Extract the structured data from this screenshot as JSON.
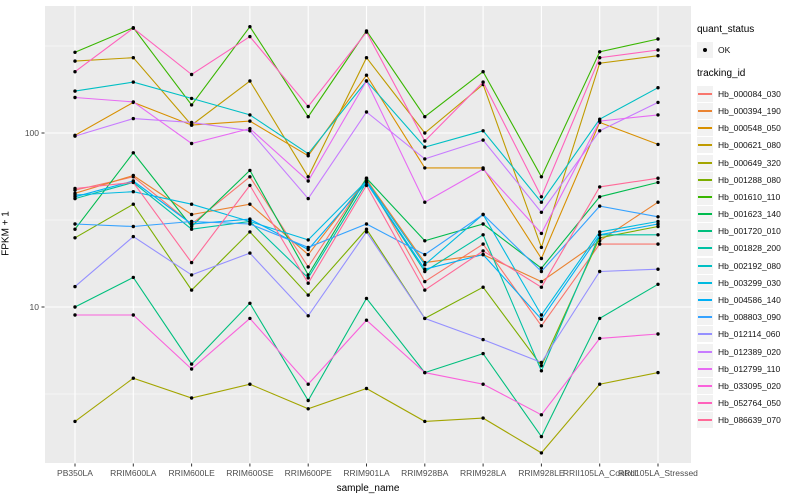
{
  "figure": {
    "y_axis_title": "FPKM + 1",
    "x_axis_title": "sample_name",
    "y_tick_labels": [
      "100",
      "10"
    ],
    "legend": {
      "quant_status_title": "quant_status",
      "quant_status_ok_label": "OK",
      "tracking_id_title": "tracking_id"
    }
  },
  "chart_data": {
    "type": "line",
    "title": "",
    "xlabel": "sample_name",
    "ylabel": "FPKM + 1",
    "y_scale": "log10",
    "ylim": [
      1.25,
      520
    ],
    "y_major_ticks": [
      10,
      100
    ],
    "y_minor_gridlines": [
      3.162,
      31.62,
      316.23
    ],
    "grid": true,
    "legend_position": "right",
    "point_marker": "black-dot",
    "quant_status": "OK",
    "panel_background": "#EBEBEB",
    "gridline_color": "#FFFFFF",
    "axis_text_color": "#4D4D4D",
    "categories": [
      "PB350LA",
      "RRIM600LA",
      "RRIM600LE",
      "RRIM600SE",
      "RRIM600PE",
      "RRIM901LA",
      "RRIM928BA",
      "RRIM928LA",
      "RRIM928LE",
      "RRII105LA_Control",
      "RRII105LA_Stressed"
    ],
    "series": [
      {
        "name": "Hb_000084_030",
        "color": "#F8766D",
        "values": [
          47,
          56,
          30,
          56,
          17,
          55,
          14,
          23,
          7.8,
          23,
          23
        ]
      },
      {
        "name": "Hb_000394_190",
        "color": "#EA8331",
        "values": [
          45,
          57,
          34,
          39,
          20,
          54,
          18,
          20,
          14,
          24,
          40
        ]
      },
      {
        "name": "Hb_000548_050",
        "color": "#D89000",
        "values": [
          97,
          150,
          111,
          117,
          74,
          215,
          63,
          63,
          19,
          115,
          86
        ]
      },
      {
        "name": "Hb_000621_080",
        "color": "#C09B00",
        "values": [
          259,
          271,
          111,
          199,
          56,
          271,
          100,
          190,
          22,
          252,
          278
        ]
      },
      {
        "name": "Hb_000649_320",
        "color": "#A3A500",
        "values": [
          2.2,
          3.9,
          3.0,
          3.6,
          2.6,
          3.4,
          2.2,
          2.3,
          1.45,
          3.6,
          4.2
        ]
      },
      {
        "name": "Hb_001288_080",
        "color": "#7CAE00",
        "values": [
          25,
          39,
          12.5,
          27,
          11.7,
          28,
          8.6,
          13,
          4.6,
          25,
          29
        ]
      },
      {
        "name": "Hb_001610_110",
        "color": "#39B600",
        "values": [
          291,
          403,
          145,
          408,
          124,
          386,
          124,
          225,
          56,
          293,
          347
        ]
      },
      {
        "name": "Hb_001623_140",
        "color": "#00BB4E",
        "values": [
          28,
          77,
          29,
          61,
          15.3,
          55,
          24,
          30,
          16.7,
          43,
          52
        ]
      },
      {
        "name": "Hb_001720_010",
        "color": "#00BF7D",
        "values": [
          10,
          14.8,
          4.7,
          10.5,
          2.9,
          11.2,
          4.2,
          5.4,
          1.8,
          8.6,
          13.5
        ]
      },
      {
        "name": "Hb_001828_200",
        "color": "#00C1A3",
        "values": [
          42,
          52,
          28,
          31,
          14.7,
          52,
          16,
          26,
          4.3,
          26,
          26
        ]
      },
      {
        "name": "Hb_002192_080",
        "color": "#00BFC4",
        "values": [
          174,
          196,
          158,
          127,
          76,
          199,
          83,
          103,
          40,
          120,
          182
        ]
      },
      {
        "name": "Hb_003299_030",
        "color": "#00BAE0",
        "values": [
          44,
          46,
          39,
          31,
          24.3,
          53,
          17.5,
          34,
          9,
          27,
          31
        ]
      },
      {
        "name": "Hb_004586_140",
        "color": "#00B0F6",
        "values": [
          43,
          53,
          30,
          32,
          21.4,
          52,
          16.5,
          20,
          8.5,
          26,
          30
        ]
      },
      {
        "name": "Hb_008803_090",
        "color": "#35A2FF",
        "values": [
          30,
          29,
          31,
          30,
          22,
          30,
          20,
          34,
          16,
          38,
          33
        ]
      },
      {
        "name": "Hb_012114_060",
        "color": "#9590FF",
        "values": [
          13.1,
          25.4,
          15.3,
          20.4,
          8.9,
          27,
          8.6,
          6.5,
          4.8,
          16,
          16.5
        ]
      },
      {
        "name": "Hb_012389_020",
        "color": "#C77CFF",
        "values": [
          96,
          121,
          115,
          103,
          42,
          132,
          71,
          91,
          35,
          103,
          150
        ]
      },
      {
        "name": "Hb_012799_110",
        "color": "#E76BF3",
        "values": [
          160,
          151,
          87,
          106,
          53,
          199,
          40,
          62,
          26.5,
          117,
          127
        ]
      },
      {
        "name": "Hb_033095_020",
        "color": "#FA62DB",
        "values": [
          9,
          9,
          4.4,
          8.6,
          3.6,
          8.4,
          4.2,
          3.6,
          2.4,
          6.6,
          7
        ]
      },
      {
        "name": "Hb_052764_050",
        "color": "#FF62BC",
        "values": [
          225,
          400,
          217,
          358,
          142,
          380,
          90,
          196,
          43,
          271,
          300
        ]
      },
      {
        "name": "Hb_086639_070",
        "color": "#FF6A98",
        "values": [
          48,
          52,
          18,
          50,
          13.7,
          50,
          12.5,
          21,
          13,
          49,
          55
        ]
      }
    ]
  }
}
